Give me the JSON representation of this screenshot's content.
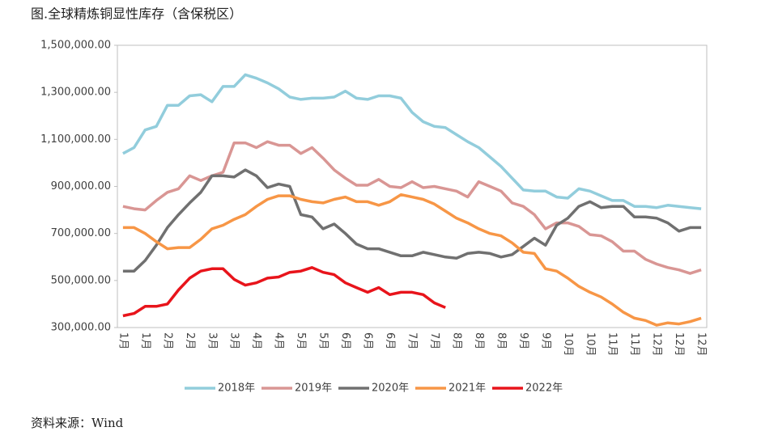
{
  "chart_data": {
    "type": "line",
    "title": "图.全球精炼铜显性库存（含保税区）",
    "source": "资料来源：Wind",
    "categories": [
      "1月",
      null,
      "1月",
      null,
      "2月",
      null,
      "2月",
      null,
      "3月",
      null,
      "3月",
      null,
      "4月",
      null,
      "4月",
      null,
      "5月",
      null,
      "5月",
      null,
      "6月",
      null,
      "6月",
      null,
      "6月",
      null,
      "7月",
      null,
      "7月",
      null,
      "8月",
      null,
      "8月",
      null,
      "8月",
      null,
      "9月",
      null,
      "9月",
      null,
      "10月",
      null,
      "10月",
      null,
      "11月",
      null,
      "11月",
      null,
      "12月",
      null,
      "12月",
      null,
      "12月"
    ],
    "ylim": [
      300000,
      1500000
    ],
    "yticks": [
      {
        "value": 300000,
        "label": "300,000.00"
      },
      {
        "value": 500000,
        "label": "500,000.00"
      },
      {
        "value": 700000,
        "label": "700,000.00"
      },
      {
        "value": 900000,
        "label": "900,000.00"
      },
      {
        "value": 1100000,
        "label": "1,100,000.00"
      },
      {
        "value": 1300000,
        "label": "1,300,000.00"
      },
      {
        "value": 1500000,
        "label": "1,500,000.00"
      }
    ],
    "grid": false,
    "legend": "bottom",
    "series": [
      {
        "name": "2018年",
        "color": "#92cddc",
        "values": [
          1040000,
          1065000,
          1140000,
          1155000,
          1245000,
          1245000,
          1285000,
          1290000,
          1260000,
          1325000,
          1325000,
          1375000,
          1360000,
          1340000,
          1315000,
          1280000,
          1270000,
          1275000,
          1275000,
          1280000,
          1305000,
          1275000,
          1270000,
          1285000,
          1285000,
          1275000,
          1215000,
          1175000,
          1155000,
          1150000,
          1120000,
          1090000,
          1065000,
          1025000,
          985000,
          935000,
          885000,
          880000,
          880000,
          855000,
          850000,
          890000,
          880000,
          860000,
          840000,
          840000,
          815000,
          815000,
          810000,
          820000,
          815000,
          810000,
          805000
        ]
      },
      {
        "name": "2019年",
        "color": "#d99694",
        "values": [
          815000,
          805000,
          800000,
          840000,
          875000,
          890000,
          945000,
          925000,
          945000,
          960000,
          1085000,
          1085000,
          1065000,
          1090000,
          1075000,
          1075000,
          1040000,
          1065000,
          1020000,
          970000,
          935000,
          905000,
          905000,
          930000,
          900000,
          895000,
          920000,
          895000,
          900000,
          890000,
          880000,
          855000,
          920000,
          900000,
          880000,
          830000,
          815000,
          780000,
          720000,
          745000,
          745000,
          730000,
          695000,
          690000,
          665000,
          625000,
          625000,
          590000,
          570000,
          555000,
          545000,
          530000,
          545000
        ]
      },
      {
        "name": "2020年",
        "color": "#707070",
        "values": [
          540000,
          540000,
          585000,
          650000,
          725000,
          780000,
          830000,
          875000,
          945000,
          945000,
          940000,
          970000,
          945000,
          895000,
          910000,
          900000,
          780000,
          770000,
          720000,
          740000,
          700000,
          655000,
          635000,
          635000,
          620000,
          605000,
          605000,
          620000,
          610000,
          600000,
          595000,
          615000,
          620000,
          615000,
          600000,
          610000,
          645000,
          680000,
          650000,
          735000,
          765000,
          815000,
          835000,
          810000,
          815000,
          815000,
          770000,
          770000,
          765000,
          745000,
          710000,
          725000,
          725000
        ]
      },
      {
        "name": "2021年",
        "color": "#f79646",
        "values": [
          725000,
          725000,
          700000,
          665000,
          635000,
          640000,
          640000,
          675000,
          720000,
          735000,
          760000,
          780000,
          815000,
          845000,
          860000,
          860000,
          845000,
          835000,
          830000,
          845000,
          855000,
          835000,
          835000,
          820000,
          835000,
          865000,
          855000,
          845000,
          825000,
          795000,
          765000,
          745000,
          720000,
          700000,
          690000,
          660000,
          620000,
          615000,
          550000,
          540000,
          510000,
          475000,
          450000,
          430000,
          400000,
          365000,
          340000,
          330000,
          310000,
          320000,
          315000,
          325000,
          340000
        ]
      },
      {
        "name": "2022年",
        "color": "#e8141b",
        "values": [
          350000,
          360000,
          390000,
          390000,
          400000,
          460000,
          510000,
          540000,
          550000,
          550000,
          505000,
          480000,
          490000,
          510000,
          515000,
          535000,
          540000,
          555000,
          535000,
          525000,
          490000,
          470000,
          450000,
          470000,
          440000,
          450000,
          450000,
          440000,
          405000,
          385000,
          null,
          null,
          null,
          null,
          null,
          null,
          null,
          null,
          null,
          null,
          null,
          null,
          null,
          null,
          null,
          null,
          null,
          null,
          null,
          null,
          null,
          null,
          null
        ]
      }
    ]
  }
}
